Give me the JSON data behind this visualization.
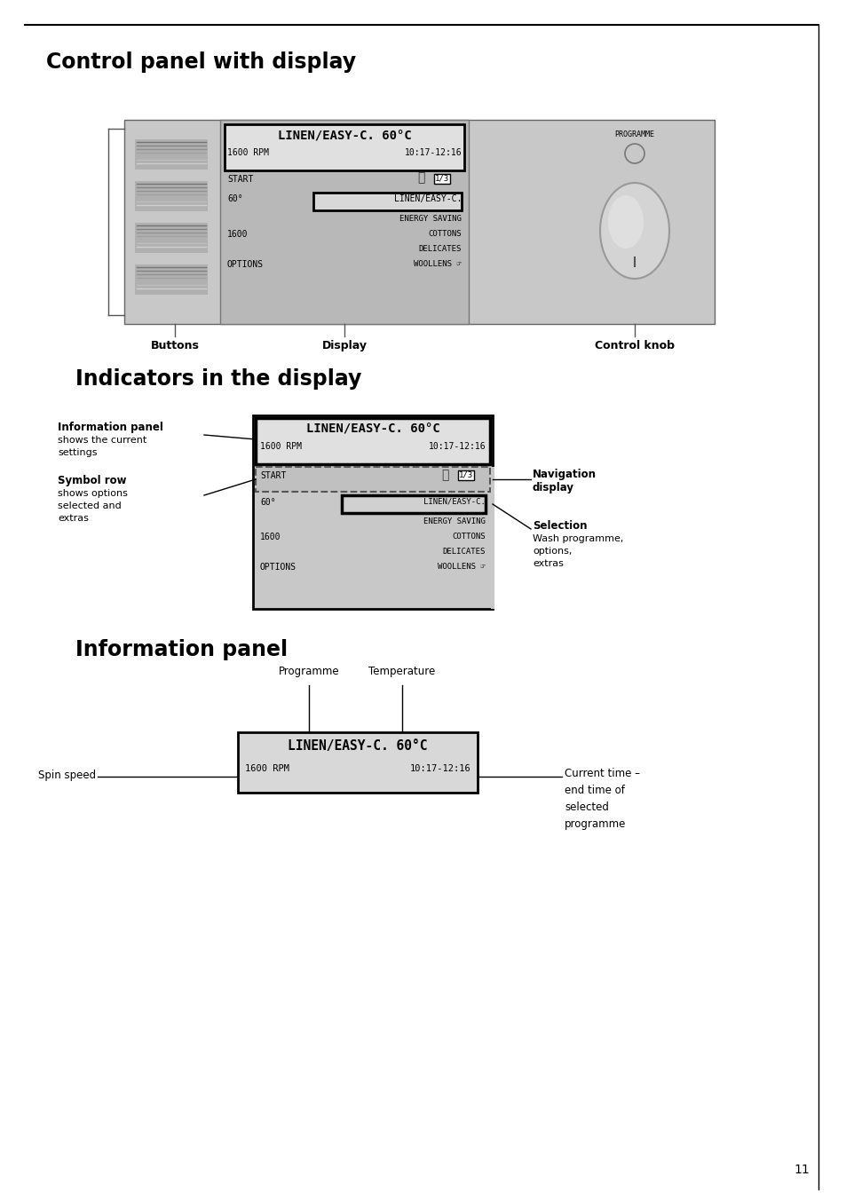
{
  "page_bg": "#ffffff",
  "header_text": "LINEN/EASY-C. 60°C",
  "rpm_text": "1600 RPM",
  "time_text": "10:17-12:16",
  "section1_title": "Control panel with display",
  "section2_title": "Indicators in the display",
  "section3_title": "Information panel",
  "programme_label": "PROGRAMME",
  "buttons_label": "Buttons",
  "display_label": "Display",
  "knob_label": "Control knob",
  "info_panel_label": "Information panel",
  "symbol_row_label": "Symbol row",
  "nav_display_label": "Navigation\ndisplay",
  "selection_label": "Selection",
  "programme_arrow_label": "Programme",
  "temperature_arrow_label": "Temperature",
  "spin_speed_label": "Spin speed",
  "current_time_label": "Current time –\nend time of\nselected\nprogramme",
  "page_number": "11"
}
